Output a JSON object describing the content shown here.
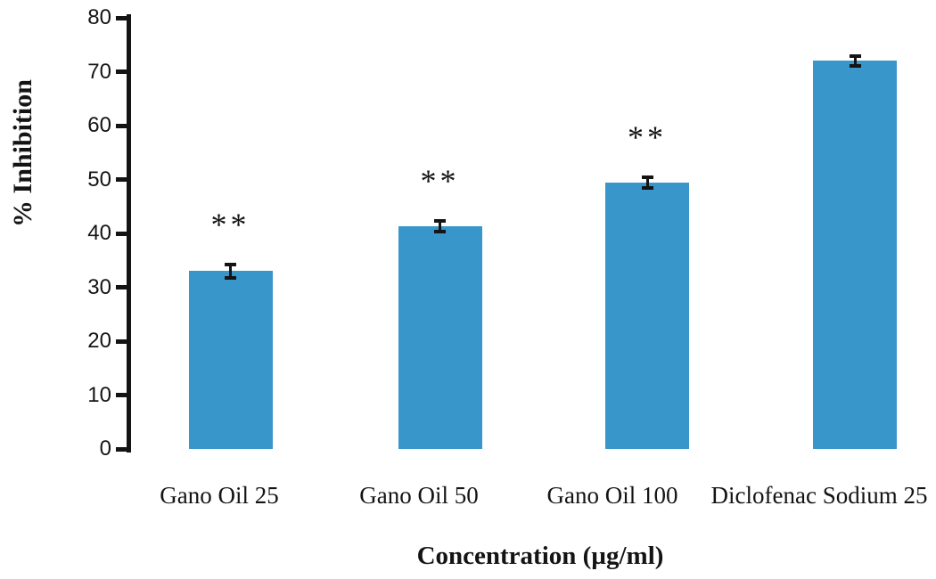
{
  "chart_data": {
    "type": "bar",
    "title": "",
    "categories": [
      "Gano Oil 25",
      "Gano Oil 50",
      "Gano Oil 100",
      "Diclofenac Sodium 25"
    ],
    "values": [
      33,
      41.3,
      49.4,
      72
    ],
    "errors": [
      1.6,
      1.3,
      1.3,
      1.2
    ],
    "significance": [
      "**",
      "**",
      "**",
      ""
    ],
    "xlabel": "Concentration (µg/ml)",
    "ylabel": "% Inhibition",
    "ylim": [
      0,
      80
    ],
    "yticks": [
      0,
      10,
      20,
      30,
      40,
      50,
      60,
      70,
      80
    ],
    "grid": false,
    "legend": null,
    "bar_color": "#3896CA",
    "axis_color": "#141414",
    "background_color": "#ffffff"
  }
}
